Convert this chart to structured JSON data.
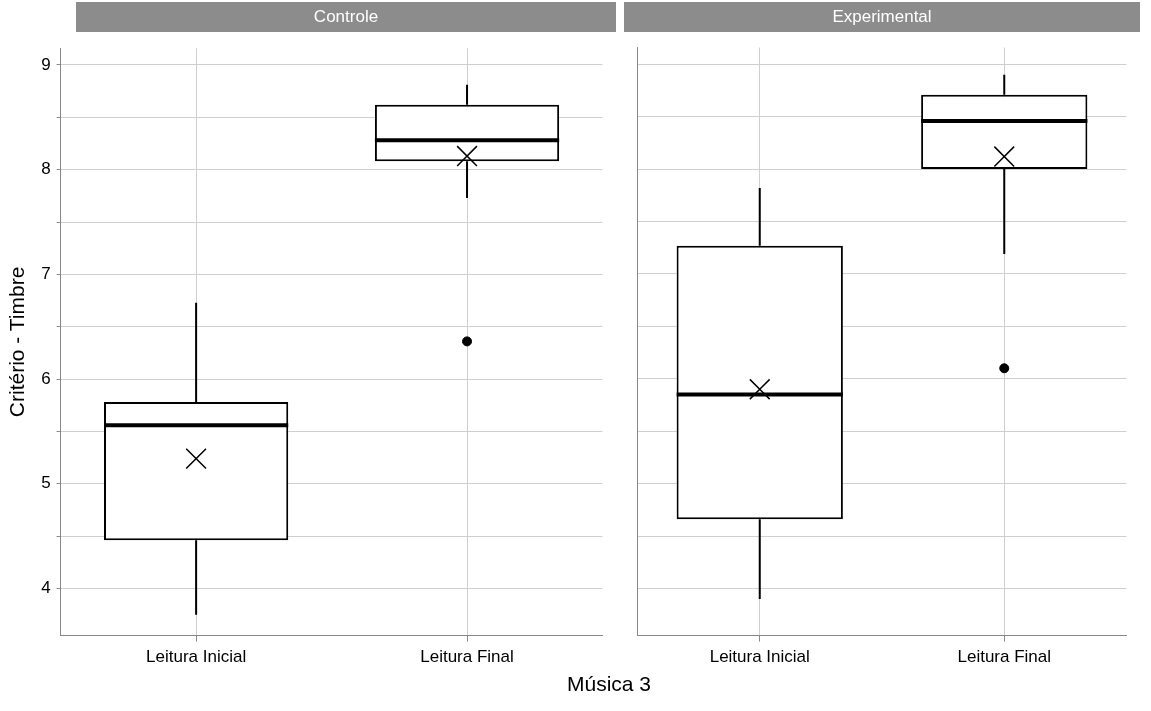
{
  "chart_data": [
    {
      "type": "box",
      "title": "Controle",
      "ylabel": "Critério - Timbre",
      "xlabel": "Música 3",
      "categories": [
        "Leitura Inicial",
        "Leitura Final"
      ],
      "grid": true,
      "legend": false,
      "ylim": [
        3.55,
        9.16
      ],
      "yticks": [
        4,
        {
          "value": 4.5,
          "label": null
        },
        5,
        {
          "value": 5.5,
          "label": null
        },
        6,
        {
          "value": 6.5,
          "label": null
        },
        7,
        {
          "value": 7.5,
          "label": null
        },
        8,
        {
          "value": 8.5,
          "label": null
        },
        9
      ],
      "boxes": [
        {
          "low": 3.75,
          "q1": 4.46,
          "median": 5.56,
          "q3": 5.78,
          "high": 6.73,
          "mean": 5.24
        },
        {
          "low": 7.73,
          "q1": 8.08,
          "median": 8.28,
          "q3": 8.62,
          "high": 8.81,
          "mean": 8.13,
          "outliers": [
            6.36
          ]
        }
      ]
    },
    {
      "type": "box",
      "title": "Experimental",
      "categories": [
        "Leitura Inicial",
        "Leitura Final"
      ],
      "grid": true,
      "legend": false,
      "tick_labels": "x",
      "ylim": [
        3.55,
        9.16
      ],
      "yticks": [
        4,
        {
          "value": 4.5,
          "label": null
        },
        5,
        {
          "value": 5.5,
          "label": null
        },
        6,
        {
          "value": 6.5,
          "label": null
        },
        7,
        {
          "value": 7.5,
          "label": null
        },
        8,
        {
          "value": 8.5,
          "label": null
        },
        9
      ],
      "boxes": [
        {
          "low": 3.9,
          "q1": 4.66,
          "median": 5.85,
          "q3": 7.27,
          "high": 7.82,
          "mean": 5.9
        },
        {
          "low": 7.19,
          "q1": 8.0,
          "median": 8.46,
          "q3": 8.71,
          "high": 8.9,
          "mean": 8.12,
          "outliers": [
            6.1
          ]
        }
      ]
    }
  ]
}
